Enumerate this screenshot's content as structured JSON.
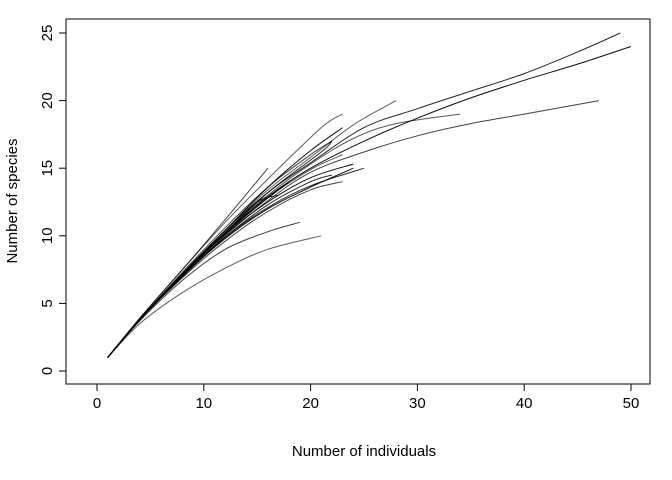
{
  "chart_data": {
    "type": "line",
    "title": "",
    "xlabel": "Number of individuals",
    "ylabel": "Number of species",
    "xlim": [
      0,
      50
    ],
    "ylim": [
      0,
      25
    ],
    "x_ticks": [
      "0",
      "10",
      "20",
      "30",
      "40",
      "50"
    ],
    "y_ticks": [
      "0",
      "5",
      "10",
      "15",
      "20",
      "25"
    ],
    "grid": false,
    "legend": "none",
    "colors": {
      "line": "#000000",
      "axis": "#000000"
    },
    "series": [
      {
        "points": [
          [
            1,
            1
          ],
          [
            4,
            3.5
          ],
          [
            8,
            5.8
          ],
          [
            12,
            7.6
          ],
          [
            16,
            9
          ],
          [
            21,
            10
          ]
        ]
      },
      {
        "points": [
          [
            1,
            1
          ],
          [
            4,
            3.7
          ],
          [
            8,
            6.7
          ],
          [
            12,
            9
          ],
          [
            16,
            10.3
          ],
          [
            19,
            11
          ]
        ]
      },
      {
        "points": [
          [
            1,
            1
          ],
          [
            4,
            3.8
          ],
          [
            8,
            7.2
          ],
          [
            12,
            10.2
          ],
          [
            16,
            13.2
          ],
          [
            21,
            16.2
          ],
          [
            22,
            17
          ]
        ]
      },
      {
        "points": [
          [
            1,
            1
          ],
          [
            4,
            3.8
          ],
          [
            8,
            7.2
          ],
          [
            12,
            10.4
          ],
          [
            16,
            13.6
          ],
          [
            20,
            16.3
          ],
          [
            23,
            18
          ]
        ]
      },
      {
        "points": [
          [
            1,
            1
          ],
          [
            4,
            3.8
          ],
          [
            8,
            7.1
          ],
          [
            12,
            10.1
          ],
          [
            16,
            12.8
          ],
          [
            20,
            14.9
          ],
          [
            23,
            16
          ]
        ]
      },
      {
        "points": [
          [
            1,
            1
          ],
          [
            4,
            3.8
          ],
          [
            8,
            6.9
          ],
          [
            12,
            9.6
          ],
          [
            16,
            11.8
          ],
          [
            20,
            13.4
          ],
          [
            23,
            14
          ]
        ]
      },
      {
        "points": [
          [
            1,
            1
          ],
          [
            4,
            3.8
          ],
          [
            8,
            7
          ],
          [
            12,
            9.9
          ],
          [
            16,
            12.1
          ],
          [
            20,
            13.7
          ],
          [
            25,
            15
          ]
        ]
      },
      {
        "points": [
          [
            1,
            1
          ],
          [
            4,
            3.8
          ],
          [
            8,
            7.1
          ],
          [
            12,
            10.1
          ],
          [
            16,
            12.5
          ],
          [
            20,
            14.3
          ],
          [
            24,
            15.3
          ]
        ]
      },
      {
        "points": [
          [
            1,
            1
          ],
          [
            4,
            3.9
          ],
          [
            8,
            7.5
          ],
          [
            12,
            11
          ],
          [
            16,
            14.2
          ],
          [
            21,
            18
          ],
          [
            23,
            19
          ]
        ]
      },
      {
        "points": [
          [
            1,
            1
          ],
          [
            4,
            3.9
          ],
          [
            8,
            7.5
          ],
          [
            12,
            11.2
          ],
          [
            16,
            15
          ]
        ]
      },
      {
        "points": [
          [
            1,
            1
          ],
          [
            4,
            3.8
          ],
          [
            8,
            7.2
          ],
          [
            12,
            10.2
          ],
          [
            15,
            12.5
          ],
          [
            17,
            13
          ]
        ]
      },
      {
        "points": [
          [
            1,
            1
          ],
          [
            4,
            3.8
          ],
          [
            8,
            7
          ],
          [
            12,
            9.8
          ],
          [
            16,
            12
          ],
          [
            20,
            13.6
          ],
          [
            24,
            15
          ]
        ]
      },
      {
        "points": [
          [
            1,
            1
          ],
          [
            4,
            3.8
          ],
          [
            8,
            7.1
          ],
          [
            12,
            10.3
          ],
          [
            16,
            13
          ],
          [
            20,
            15.3
          ],
          [
            24,
            17.2
          ],
          [
            28,
            18.3
          ],
          [
            34,
            19
          ]
        ]
      },
      {
        "points": [
          [
            1,
            1
          ],
          [
            4,
            3.8
          ],
          [
            8,
            7
          ],
          [
            12,
            10
          ],
          [
            16,
            12.6
          ],
          [
            20,
            14.7
          ],
          [
            25,
            16.2
          ],
          [
            30,
            17.4
          ],
          [
            35,
            18.3
          ],
          [
            40,
            19
          ],
          [
            47,
            20
          ]
        ]
      },
      {
        "points": [
          [
            1,
            1
          ],
          [
            4,
            3.8
          ],
          [
            8,
            7.2
          ],
          [
            12,
            10.4
          ],
          [
            16,
            13.2
          ],
          [
            20,
            15.4
          ],
          [
            25,
            18
          ],
          [
            30,
            19.4
          ],
          [
            35,
            20.7
          ],
          [
            40,
            22
          ],
          [
            45,
            23.6
          ],
          [
            49,
            25
          ]
        ]
      },
      {
        "points": [
          [
            1,
            1
          ],
          [
            4,
            3.8
          ],
          [
            8,
            7.1
          ],
          [
            12,
            10.2
          ],
          [
            16,
            12.9
          ],
          [
            20,
            15
          ],
          [
            25,
            17
          ],
          [
            30,
            18.7
          ],
          [
            35,
            20.2
          ],
          [
            40,
            21.5
          ],
          [
            45,
            22.7
          ],
          [
            50,
            24
          ]
        ]
      },
      {
        "points": [
          [
            1,
            1
          ],
          [
            4,
            3.8
          ],
          [
            8,
            7.2
          ],
          [
            12,
            10.4
          ],
          [
            16,
            13.4
          ],
          [
            20,
            15.8
          ],
          [
            24,
            18.2
          ],
          [
            28,
            20
          ]
        ]
      },
      {
        "points": [
          [
            1,
            1
          ],
          [
            4,
            3.8
          ],
          [
            8,
            7.3
          ],
          [
            12,
            10.6
          ],
          [
            16,
            13.6
          ],
          [
            20,
            16
          ],
          [
            22,
            17
          ]
        ]
      },
      {
        "points": [
          [
            1,
            1
          ],
          [
            4,
            3.8
          ],
          [
            8,
            7
          ],
          [
            12,
            9.9
          ],
          [
            16,
            12.3
          ],
          [
            20,
            14
          ],
          [
            22,
            14.5
          ]
        ]
      },
      {
        "points": [
          [
            1,
            1
          ],
          [
            4,
            3.8
          ],
          [
            8,
            7.1
          ],
          [
            12,
            10.2
          ],
          [
            16,
            12.8
          ],
          [
            18,
            14
          ]
        ]
      }
    ]
  }
}
